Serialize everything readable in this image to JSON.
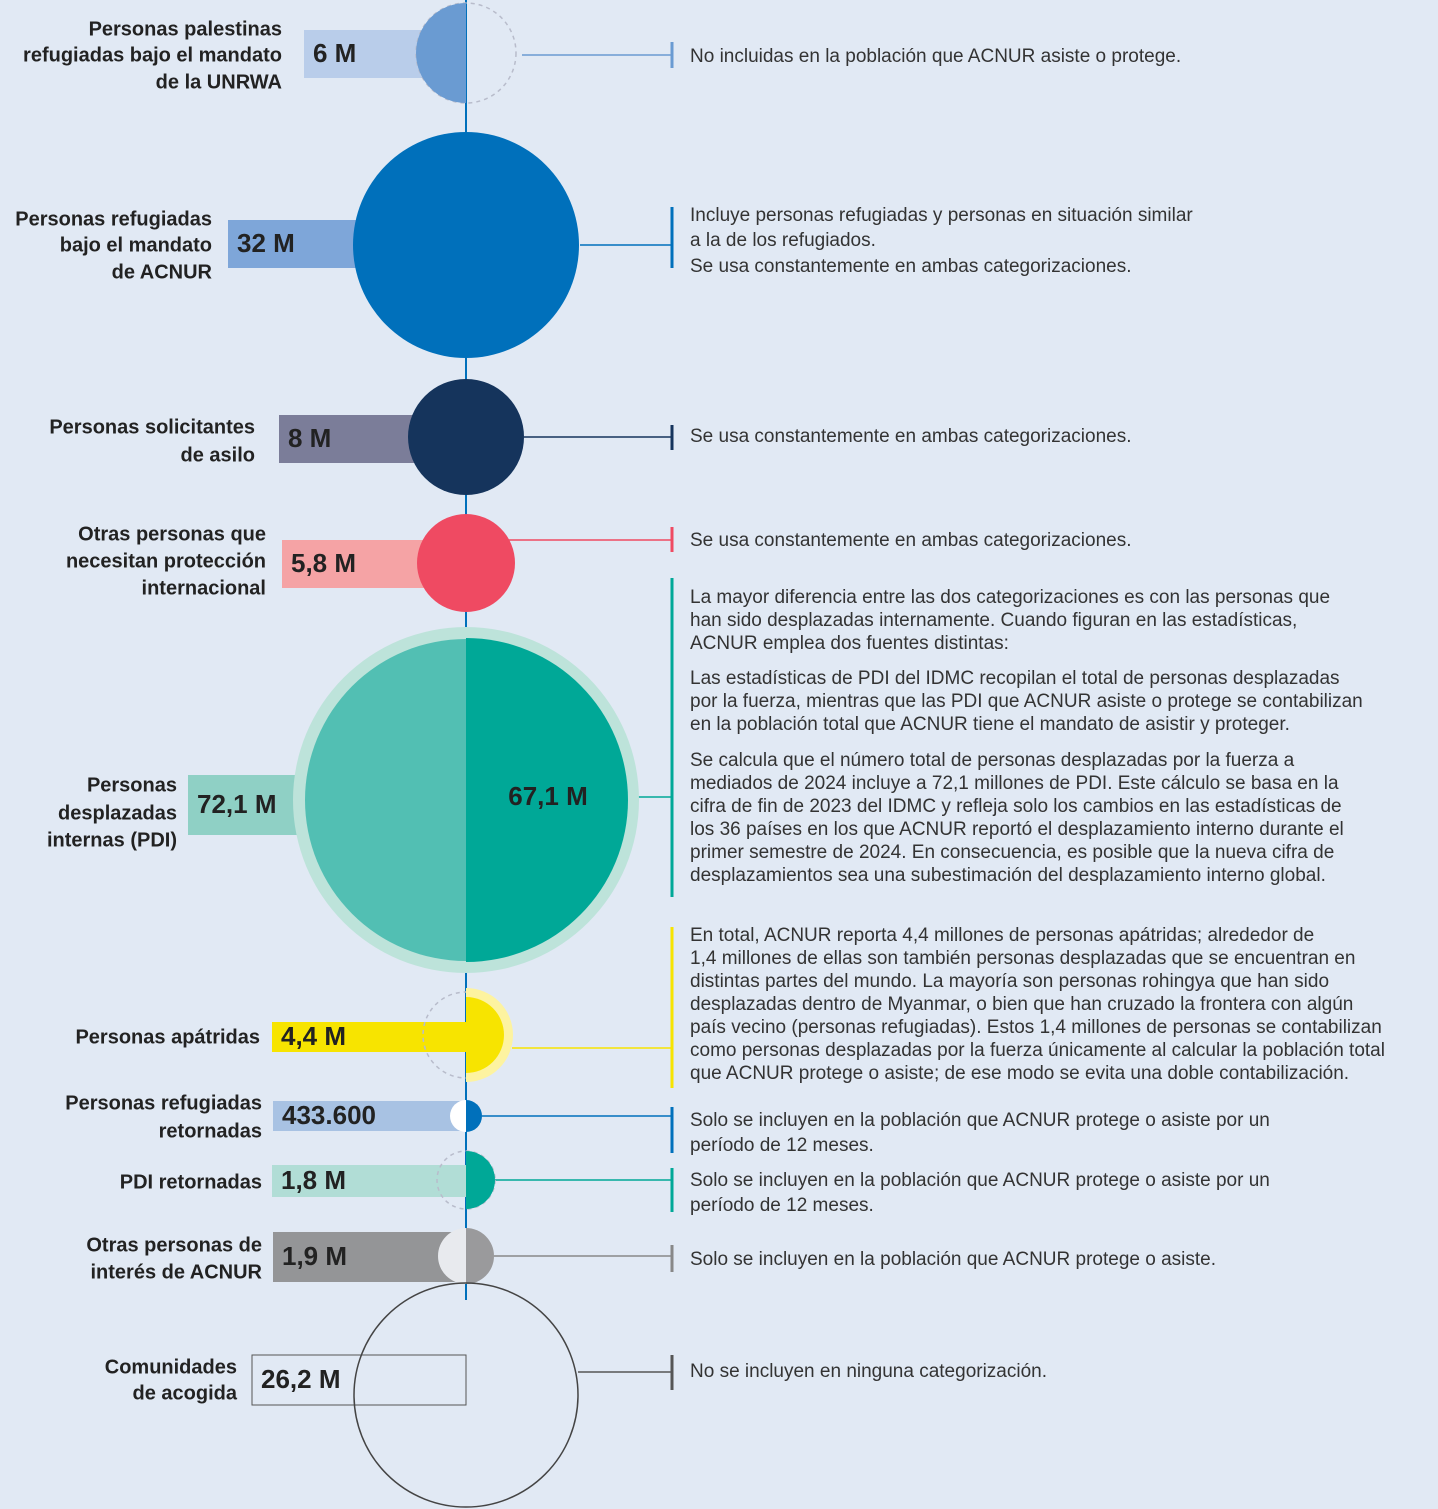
{
  "rows": [
    {
      "label": [
        "Personas palestinas",
        "refugiadas bajo el mandato",
        "de la UNRWA"
      ],
      "value": "6 M",
      "description": [
        [
          "No incluidas en la población que ACNUR asiste o protege."
        ]
      ]
    },
    {
      "label": [
        "Personas refugiadas",
        "bajo el mandato",
        "de ACNUR"
      ],
      "value": "32 M",
      "description": [
        [
          "Incluye personas refugiadas y personas en situación similar",
          "a la de los refugiados.",
          "Se usa constantemente en ambas categorizaciones."
        ]
      ]
    },
    {
      "label": [
        "Personas solicitantes",
        "de asilo"
      ],
      "value": "8 M",
      "description": [
        [
          "Se usa constantemente en ambas categorizaciones."
        ]
      ]
    },
    {
      "label": [
        "Otras personas que",
        "necesitan protección",
        "internacional"
      ],
      "value": "5,8 M",
      "description": [
        [
          "Se usa constantemente en ambas categorizaciones."
        ]
      ]
    },
    {
      "label": [
        "Personas",
        "desplazadas",
        "internas (PDI)"
      ],
      "value": "72,1 M",
      "inner_value": "67,1 M",
      "description": [
        [
          "La mayor diferencia entre las dos categorizaciones es con las personas que",
          "han sido desplazadas internamente. Cuando figuran en las estadísticas,",
          "ACNUR emplea dos fuentes distintas:"
        ],
        [
          "Las estadísticas de PDI del IDMC recopilan el total de personas desplazadas",
          "por la fuerza, mientras que las PDI que ACNUR asiste o protege se contabilizan",
          "en la población total que ACNUR tiene el mandato de asistir y proteger."
        ],
        [
          "Se calcula que el número total de personas desplazadas por la fuerza a",
          "mediados de 2024 incluye a 72,1 millones de PDI. Este cálculo se basa en la",
          "cifra de fin de 2023 del IDMC y refleja solo los cambios en las estadísticas de",
          "los 36 países en los que ACNUR reportó el desplazamiento interno durante el",
          "primer semestre de 2024. En consecuencia, es posible que la nueva cifra de",
          "desplazamientos sea una subestimación del desplazamiento interno global."
        ]
      ]
    },
    {
      "label": [
        "Personas apátridas"
      ],
      "value": "4,4 M",
      "description": [
        [
          "En total, ACNUR reporta 4,4 millones de personas apátridas; alrededor de",
          "1,4 millones de ellas son también personas desplazadas que se encuentran en",
          "distintas partes del mundo. La mayoría son personas rohingya que han sido",
          "desplazadas dentro de Myanmar, o bien que han cruzado la frontera con algún",
          "país vecino (personas refugiadas). Estos 1,4 millones de personas se contabilizan",
          "como personas desplazadas por la fuerza únicamente al calcular la población total",
          "que ACNUR protege o asiste; de ese modo se evita una doble contabilización."
        ]
      ]
    },
    {
      "label": [
        "Personas refugiadas",
        "retornadas"
      ],
      "value": "433.600",
      "description": [
        [
          "Solo se incluyen en la población que ACNUR protege o asiste por un",
          "período de 12 meses."
        ]
      ]
    },
    {
      "label": [
        "PDI retornadas"
      ],
      "value": "1,8 M",
      "description": [
        [
          "Solo se incluyen en la población que ACNUR protege o asiste por un",
          "período de 12 meses."
        ]
      ]
    },
    {
      "label": [
        "Otras personas de",
        "interés de ACNUR"
      ],
      "value": "1,9 M",
      "description": [
        [
          "Solo se incluyen en la población que ACNUR protege o asiste."
        ]
      ]
    },
    {
      "label": [
        "Comunidades",
        "de acogida"
      ],
      "value": "26,2 M",
      "description": [
        [
          "No se incluyen en ninguna categorización."
        ]
      ]
    }
  ]
}
